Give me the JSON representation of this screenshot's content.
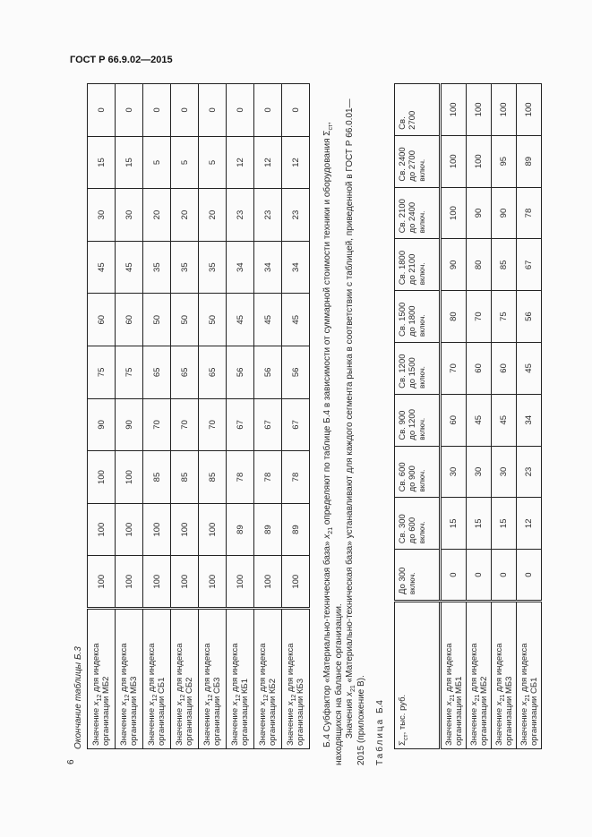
{
  "header": {
    "doc_id": "ГОСТ Р 66.9.02—2015"
  },
  "page_number": "6",
  "table_b3": {
    "caption": "Окончание таблицы Б.3",
    "rows": [
      {
        "label_prefix": "Значение",
        "var": "x",
        "sub": "12",
        "label_suffix": "для индекса организации МБ2",
        "values": [
          "100",
          "100",
          "100",
          "90",
          "75",
          "60",
          "45",
          "30",
          "15",
          "0"
        ]
      },
      {
        "label_prefix": "Значение",
        "var": "x",
        "sub": "12",
        "label_suffix": "для индекса организации МБ3",
        "values": [
          "100",
          "100",
          "100",
          "90",
          "75",
          "60",
          "45",
          "30",
          "15",
          "0"
        ]
      },
      {
        "label_prefix": "Значение",
        "var": "x",
        "sub": "12",
        "label_suffix": "для индекса организации СБ1",
        "values": [
          "100",
          "100",
          "85",
          "70",
          "65",
          "50",
          "35",
          "20",
          "5",
          "0"
        ]
      },
      {
        "label_prefix": "Значение",
        "var": "x",
        "sub": "12",
        "label_suffix": "для индекса организации СБ2",
        "values": [
          "100",
          "100",
          "85",
          "70",
          "65",
          "50",
          "35",
          "20",
          "5",
          "0"
        ]
      },
      {
        "label_prefix": "Значение",
        "var": "x",
        "sub": "12",
        "label_suffix": "для индекса организации СБ3",
        "values": [
          "100",
          "100",
          "85",
          "70",
          "65",
          "50",
          "35",
          "20",
          "5",
          "0"
        ]
      },
      {
        "label_prefix": "Значение",
        "var": "x",
        "sub": "12",
        "label_suffix": "для индекса организации КБ1",
        "values": [
          "100",
          "89",
          "78",
          "67",
          "56",
          "45",
          "34",
          "23",
          "12",
          "0"
        ]
      },
      {
        "label_prefix": "Значение",
        "var": "x",
        "sub": "12",
        "label_suffix": "для индекса организации КБ2",
        "values": [
          "100",
          "89",
          "78",
          "67",
          "56",
          "45",
          "34",
          "23",
          "12",
          "0"
        ]
      },
      {
        "label_prefix": "Значение",
        "var": "x",
        "sub": "12",
        "label_suffix": "для индекса организации КБ3",
        "values": [
          "100",
          "89",
          "78",
          "67",
          "56",
          "45",
          "34",
          "23",
          "12",
          "0"
        ]
      }
    ]
  },
  "paragraphs": [
    [
      {
        "t": "Б.4 Субфактор «Материально-техническая база» "
      },
      {
        "t": "x",
        "i": true
      },
      {
        "sub": "21"
      },
      {
        "t": " определяют по таблице Б.4 в зависимости от суммарной стоимости техники и оборудования Σ"
      },
      {
        "sub": "ст"
      },
      {
        "t": ", находящихся на балансе организации."
      }
    ],
    [
      {
        "t": "Значения "
      },
      {
        "t": "x",
        "i": true
      },
      {
        "sub": "21"
      },
      {
        "t": " «Материально-техническая база» устанавливают для каждого сегмента рынка в соответствии с таблицей, приведенной в ГОСТ Р 66.0.01—2015 (приложение В)."
      }
    ]
  ],
  "table_b4": {
    "caption_word": "Таблица",
    "caption_num": "Б.4",
    "header_label": {
      "symbol": "Σ",
      "sub": "ст",
      "rest": ", тыс. руб."
    },
    "columns": [
      {
        "line1": "До 300",
        "line2": "",
        "note": "включ."
      },
      {
        "line1": "Св. 300",
        "line2": "до 600",
        "note": "включ."
      },
      {
        "line1": "Св. 600",
        "line2": "до 900",
        "note": "включ."
      },
      {
        "line1": "Св. 900",
        "line2": "до 1200",
        "note": "включ."
      },
      {
        "line1": "Св. 1200",
        "line2": "до 1500",
        "note": "включ."
      },
      {
        "line1": "Св. 1500",
        "line2": "до 1800",
        "note": "включ."
      },
      {
        "line1": "Св. 1800",
        "line2": "до 2100",
        "note": "включ."
      },
      {
        "line1": "Св. 2100",
        "line2": "до 2400",
        "note": "включ."
      },
      {
        "line1": "Св. 2400",
        "line2": "до 2700",
        "note": "включ."
      },
      {
        "line1": "Св.",
        "line2": "2700",
        "note": ""
      }
    ],
    "rows": [
      {
        "label_prefix": "Значение",
        "var": "x",
        "sub": "21",
        "label_suffix": "для индекса организации МБ1",
        "values": [
          "0",
          "15",
          "30",
          "60",
          "70",
          "80",
          "90",
          "100",
          "100",
          "100"
        ]
      },
      {
        "label_prefix": "Значение",
        "var": "x",
        "sub": "21",
        "label_suffix": "для индекса организации МБ2",
        "values": [
          "0",
          "15",
          "30",
          "45",
          "60",
          "70",
          "80",
          "90",
          "100",
          "100"
        ]
      },
      {
        "label_prefix": "Значение",
        "var": "x",
        "sub": "21",
        "label_suffix": "для индекса организации МБ3",
        "values": [
          "0",
          "15",
          "30",
          "45",
          "60",
          "75",
          "85",
          "90",
          "95",
          "100"
        ]
      },
      {
        "label_prefix": "Значение",
        "var": "x",
        "sub": "21",
        "label_suffix": "для индекса организации СБ1",
        "values": [
          "0",
          "12",
          "23",
          "34",
          "45",
          "56",
          "67",
          "78",
          "89",
          "100"
        ]
      }
    ]
  }
}
